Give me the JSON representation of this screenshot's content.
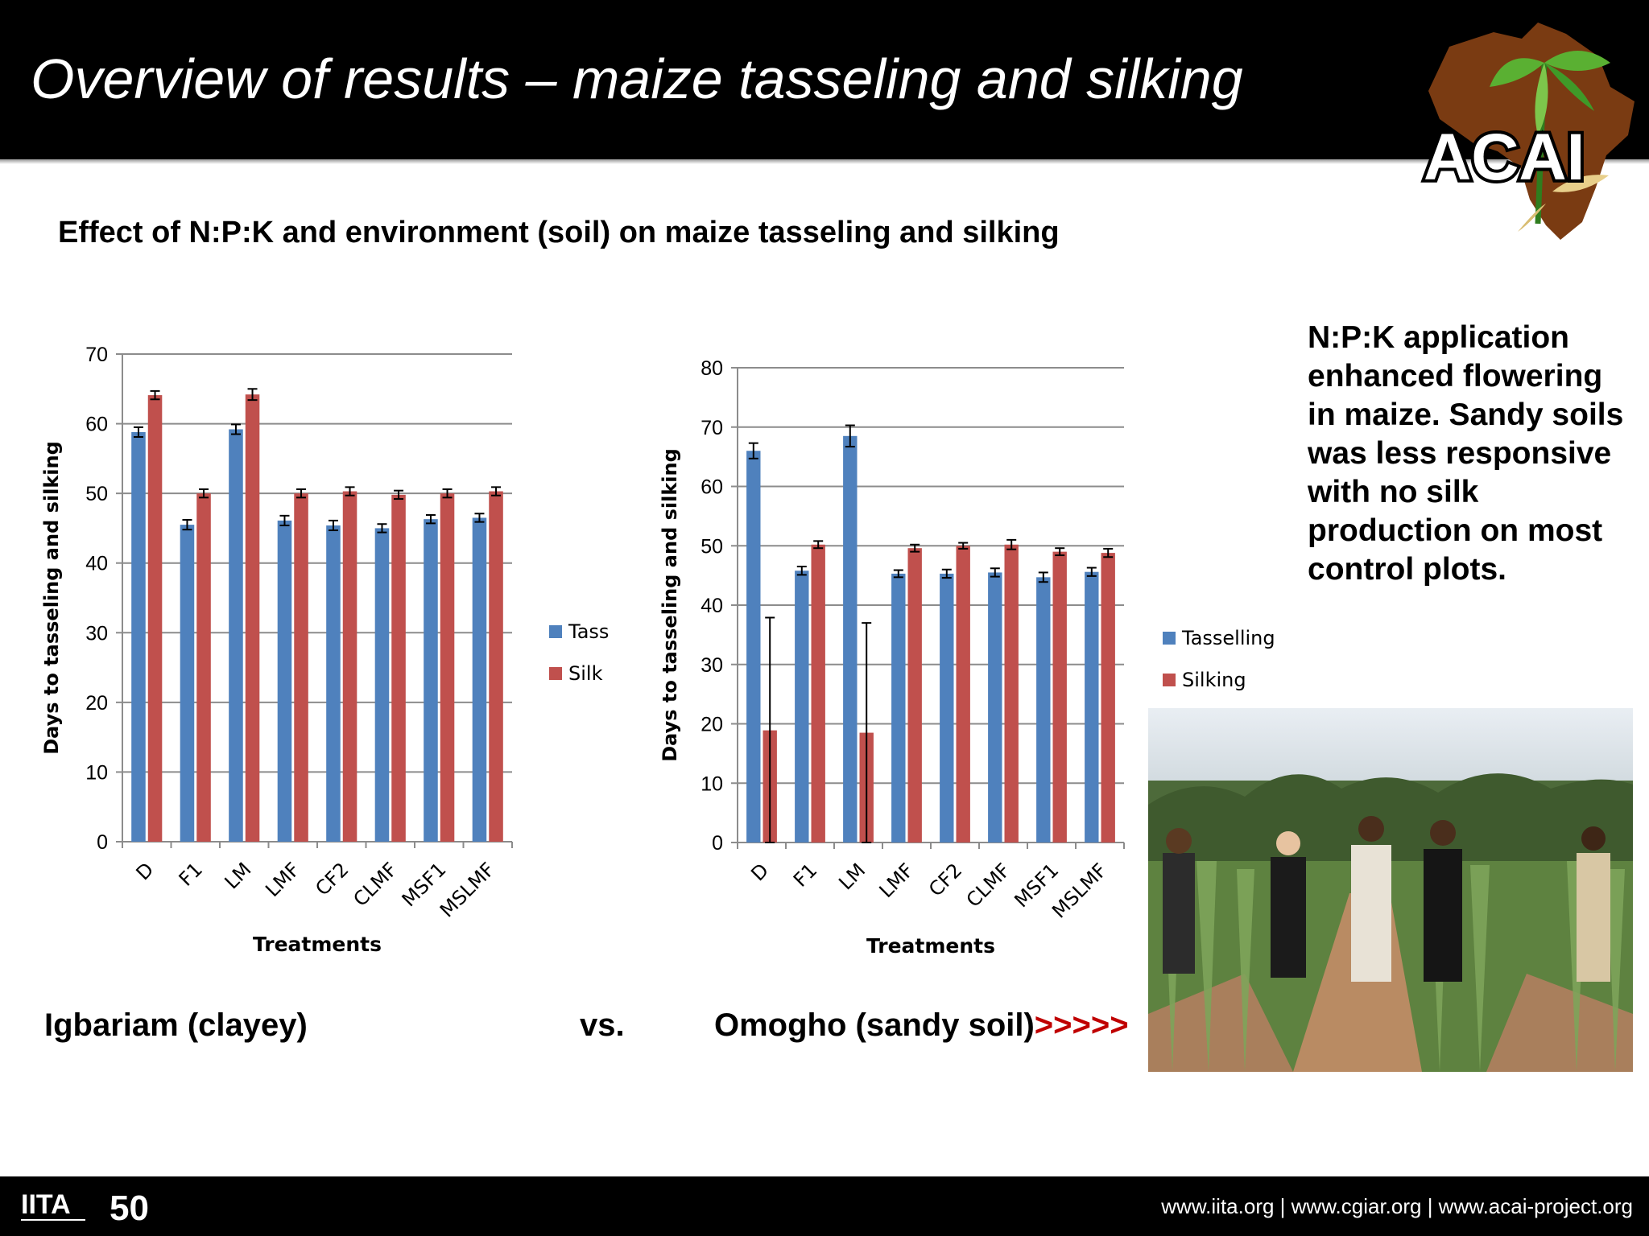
{
  "slide": {
    "title": "Overview of results – maize tasseling and silking",
    "subtitle": "Effect of N:P:K and environment (soil) on maize tasseling and silking",
    "logo_text": "ACAI"
  },
  "captions": {
    "left": "Igbariam (clayey)",
    "vs": "vs.",
    "right": "Omogho (sandy soil)",
    "arrows": ">>>>>"
  },
  "note": "N:P:K application enhanced flowering in maize. Sandy soils was less responsive  with no silk production on most control plots.",
  "footer": {
    "links": "www.iita.org | www.cgiar.org | www.acai-project.org",
    "logo_text": "IITA",
    "anniversary": "50"
  },
  "colors": {
    "series1": "#4f81bd",
    "series2": "#c0504d",
    "header": "#000000",
    "accent": "#c00000"
  },
  "chart_data": [
    {
      "type": "bar",
      "categories": [
        "D",
        "F1",
        "LM",
        "LMF",
        "CF2",
        "CLMF",
        "MSF1",
        "MSLMF"
      ],
      "xlabel": "Treatments",
      "ylabel": "Days to tasseling and silking",
      "ylim": [
        0,
        70
      ],
      "yticks": [
        0,
        10,
        20,
        30,
        40,
        50,
        60,
        70
      ],
      "grid": true,
      "legend": "right",
      "series": [
        {
          "name": "Tass",
          "values": [
            58.8,
            45.5,
            59.2,
            46.1,
            45.4,
            45.0,
            46.3,
            46.5
          ],
          "errors": [
            0.7,
            0.7,
            0.7,
            0.7,
            0.7,
            0.6,
            0.6,
            0.6
          ]
        },
        {
          "name": "Silk",
          "values": [
            64.1,
            50.0,
            64.2,
            50.0,
            50.3,
            49.8,
            50.0,
            50.3
          ],
          "errors": [
            0.6,
            0.6,
            0.8,
            0.6,
            0.6,
            0.6,
            0.6,
            0.6
          ]
        }
      ]
    },
    {
      "type": "bar",
      "categories": [
        "D",
        "F1",
        "LM",
        "LMF",
        "CF2",
        "CLMF",
        "MSF1",
        "MSLMF"
      ],
      "xlabel": "Treatments",
      "ylabel": "Days to tasseling and silking",
      "ylim": [
        0,
        80
      ],
      "yticks": [
        0,
        10,
        20,
        30,
        40,
        50,
        60,
        70,
        80
      ],
      "grid": true,
      "legend": "right",
      "series": [
        {
          "name": "Tasselling",
          "values": [
            66.0,
            45.8,
            68.5,
            45.3,
            45.3,
            45.5,
            44.7,
            45.6
          ],
          "errors": [
            1.3,
            0.7,
            1.8,
            0.6,
            0.7,
            0.7,
            0.8,
            0.7
          ]
        },
        {
          "name": "Silking",
          "values": [
            18.9,
            50.2,
            18.5,
            49.6,
            50.0,
            50.2,
            49.0,
            48.8
          ],
          "errors": [
            19.0,
            0.6,
            18.5,
            0.6,
            0.5,
            0.8,
            0.6,
            0.7
          ]
        }
      ]
    }
  ]
}
